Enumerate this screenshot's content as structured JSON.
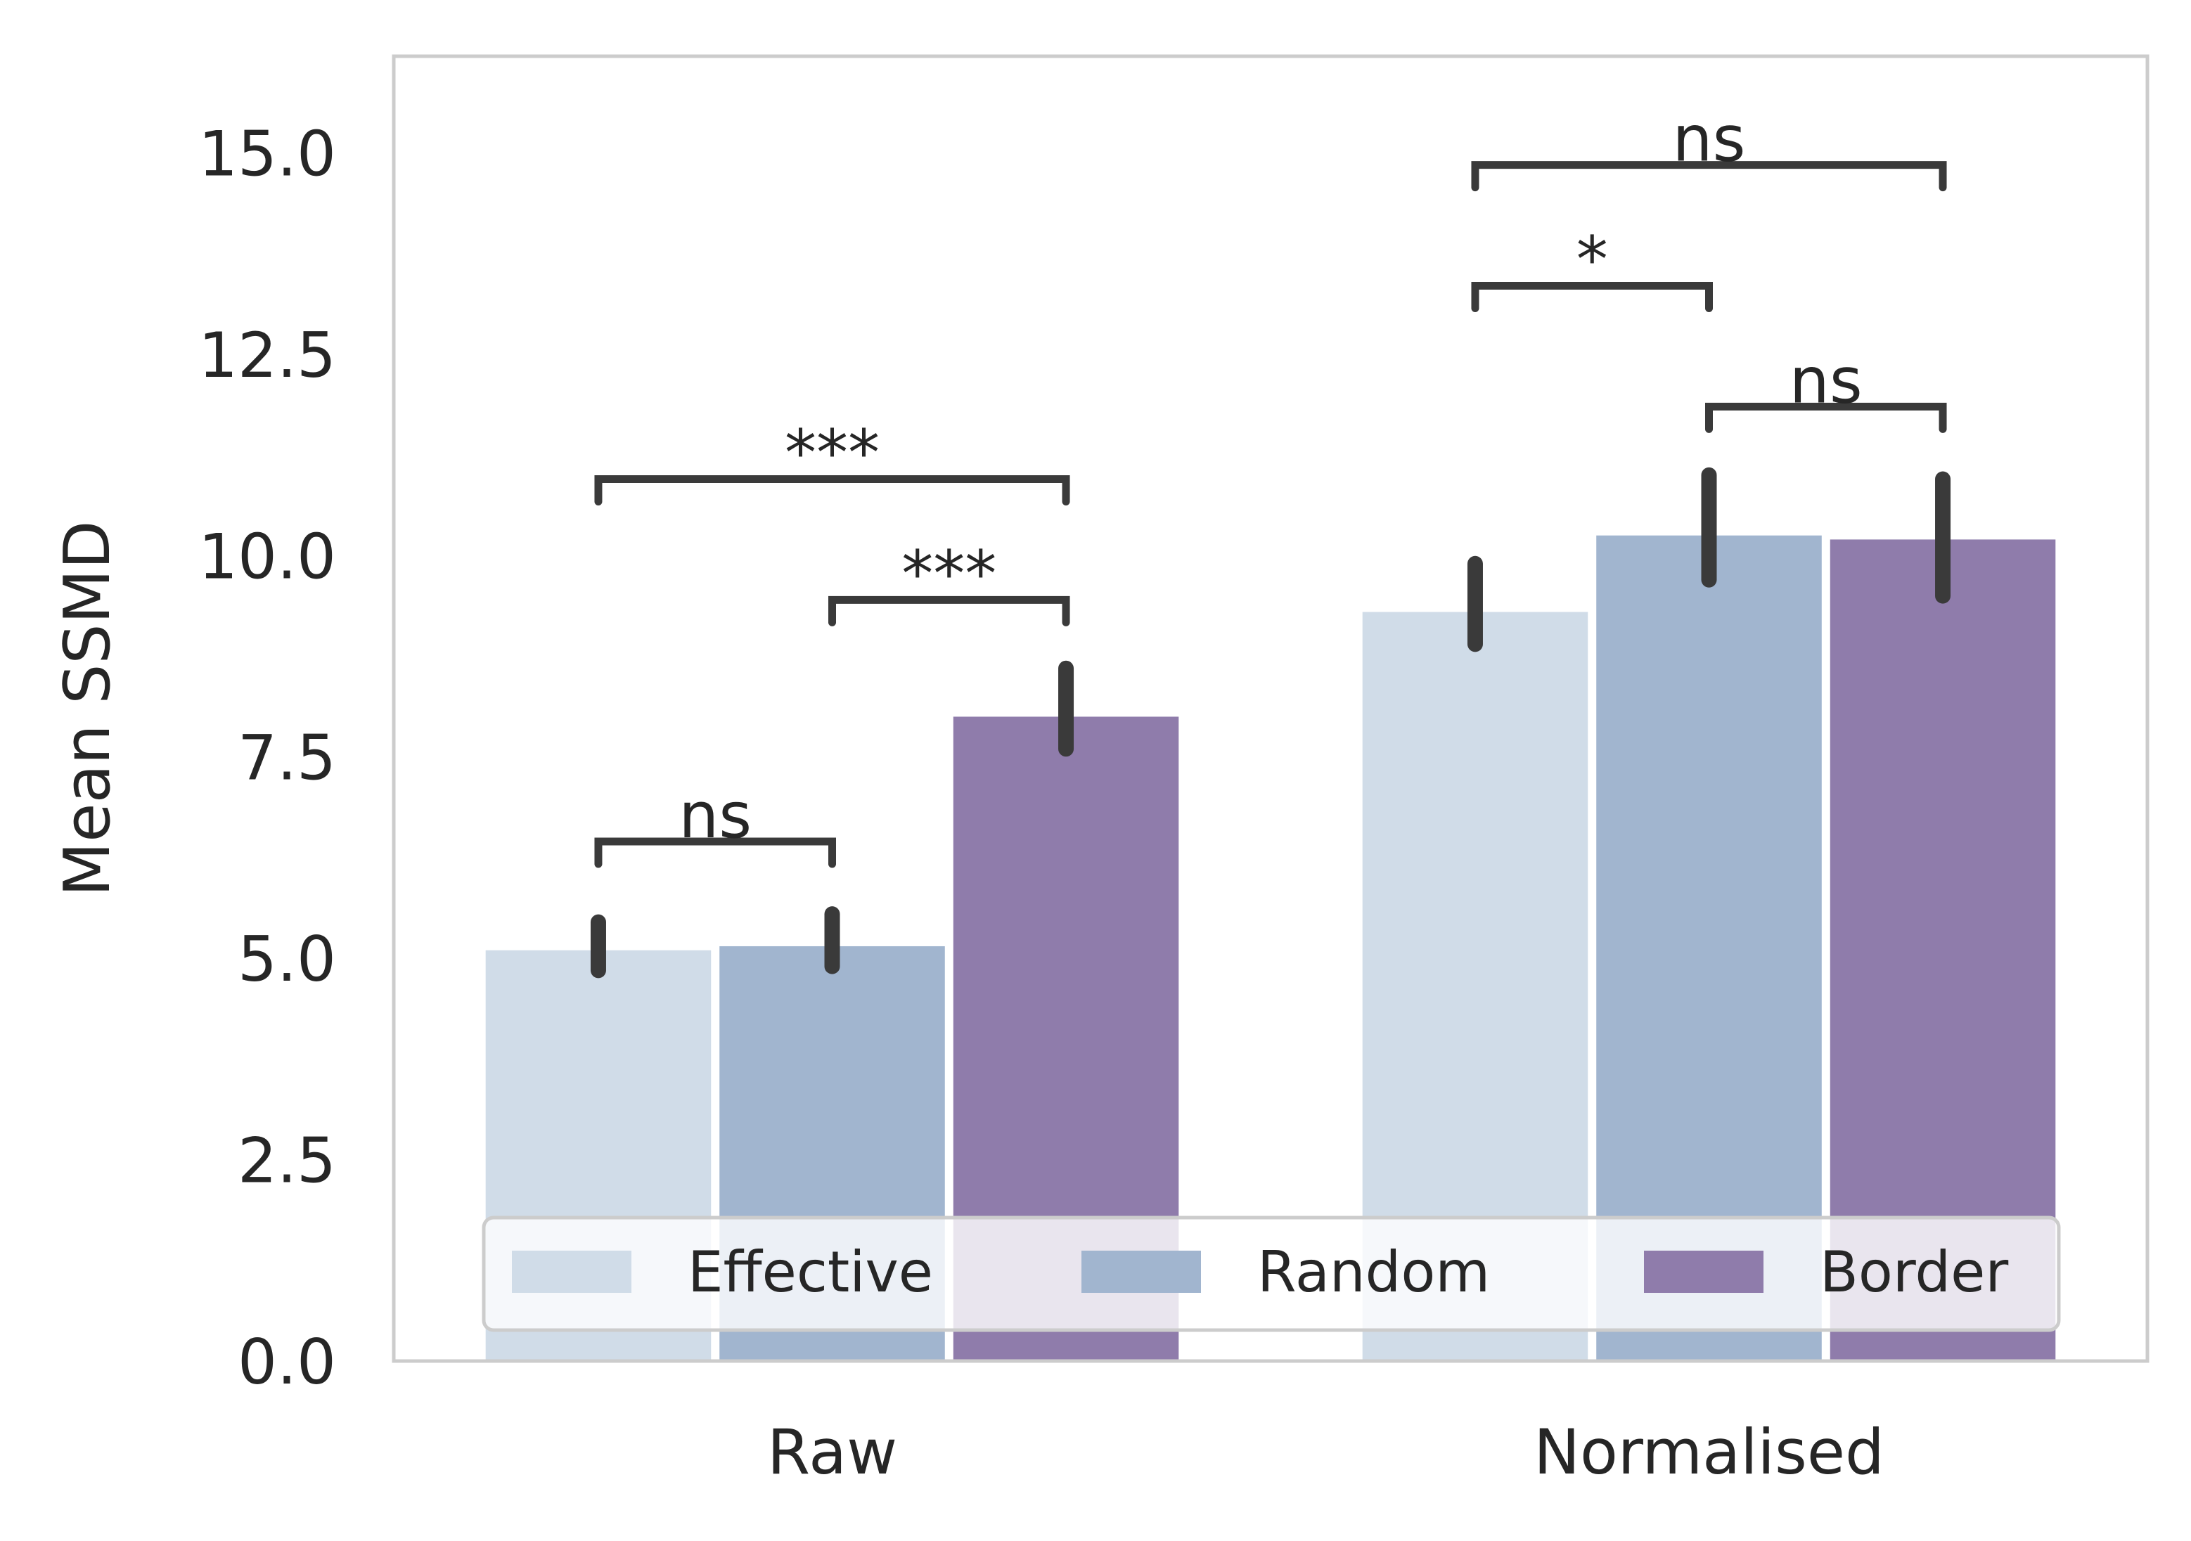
{
  "chart_data": {
    "type": "bar",
    "ylabel": "Mean SSMD",
    "ylim": [
      0,
      16.2
    ],
    "yticks": [
      "0.0",
      "2.5",
      "5.0",
      "7.5",
      "10.0",
      "12.5",
      "15.0"
    ],
    "categories": [
      "Raw",
      "Normalised"
    ],
    "grid": false,
    "legend_position": "bottom-center",
    "series": [
      {
        "name": "Effective",
        "color": "#d0dce8",
        "values": [
          5.1,
          9.3
        ],
        "ci": [
          [
            4.85,
            5.45
          ],
          [
            8.9,
            9.9
          ]
        ]
      },
      {
        "name": "Random",
        "color": "#a1b5cf",
        "values": [
          5.15,
          10.25
        ],
        "ci": [
          [
            4.9,
            5.55
          ],
          [
            9.7,
            11.0
          ]
        ]
      },
      {
        "name": "Border",
        "color": "#8f7cab",
        "values": [
          8.0,
          10.2
        ],
        "ci": [
          [
            7.6,
            8.6
          ],
          [
            9.5,
            10.95
          ]
        ]
      }
    ],
    "annotations": [
      {
        "label": "ns",
        "group": 0,
        "from": 0,
        "to": 1,
        "y": 6.45
      },
      {
        "label": "***",
        "group": 0,
        "from": 1,
        "to": 2,
        "y": 9.45
      },
      {
        "label": "***",
        "group": 0,
        "from": 0,
        "to": 2,
        "y": 10.95
      },
      {
        "label": "ns",
        "group": 1,
        "from": 1,
        "to": 2,
        "y": 11.85
      },
      {
        "label": "*",
        "group": 1,
        "from": 0,
        "to": 1,
        "y": 13.35
      },
      {
        "label": "ns",
        "group": 1,
        "from": 0,
        "to": 2,
        "y": 14.85
      }
    ]
  }
}
